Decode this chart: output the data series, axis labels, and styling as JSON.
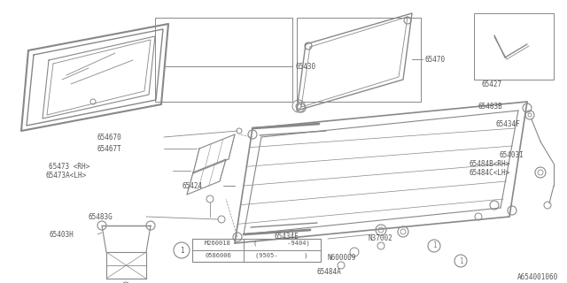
{
  "bg_color": "#ffffff",
  "lc": "#888888",
  "lc_dark": "#555555",
  "diagram_id": "A654001060",
  "fs": 5.5,
  "table": {
    "rows": [
      {
        "code": "M260018",
        "note": "(        -9404)"
      },
      {
        "code": "0586006",
        "note": "(9505-       )"
      }
    ]
  }
}
